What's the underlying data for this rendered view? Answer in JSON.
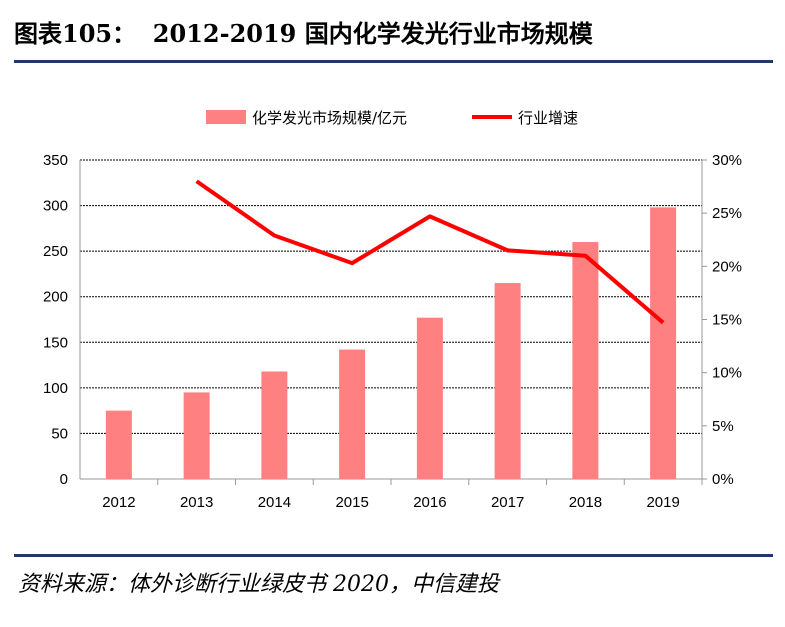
{
  "header": {
    "title": "图表105：  2012-2019 国内化学发光行业市场规模"
  },
  "footer": {
    "source": "资料来源：体外诊断行业绿皮书 2020，中信建投"
  },
  "chart_data": {
    "type": "bar+line",
    "categories": [
      "2012",
      "2013",
      "2014",
      "2015",
      "2016",
      "2017",
      "2018",
      "2019"
    ],
    "series": [
      {
        "name": "化学发光市场规模/亿元",
        "type": "bar",
        "axis": "left",
        "color": "#ff8080",
        "values": [
          75,
          95,
          118,
          142,
          177,
          215,
          260,
          298
        ]
      },
      {
        "name": "行业增速",
        "type": "line",
        "axis": "right",
        "color": "#ff0000",
        "values": [
          null,
          28.0,
          22.9,
          20.3,
          24.7,
          21.5,
          21.0,
          14.7
        ]
      }
    ],
    "y_left": {
      "range": [
        0,
        350
      ],
      "ticks": [
        "0",
        "50",
        "100",
        "150",
        "200",
        "250",
        "300",
        "350"
      ]
    },
    "y_right": {
      "range": [
        0,
        30
      ],
      "ticks": [
        "0%",
        "5%",
        "10%",
        "15%",
        "20%",
        "25%",
        "30%"
      ]
    },
    "grid": true,
    "legend": "top"
  }
}
